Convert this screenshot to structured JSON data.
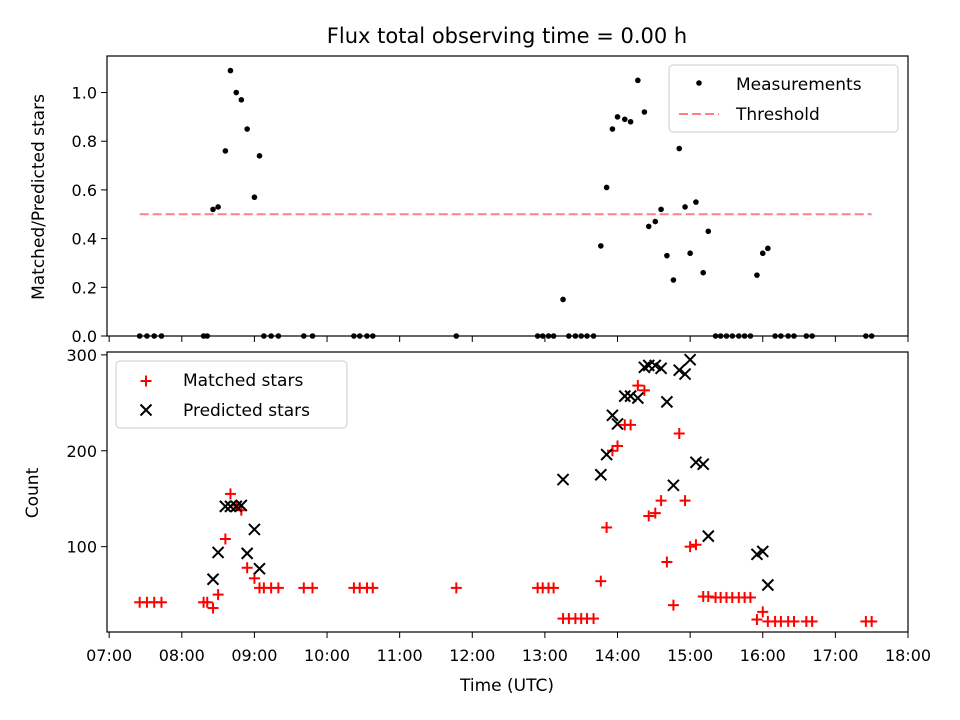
{
  "chart_data": [
    {
      "type": "scatter",
      "title": "Flux total observing time = 0.00 h",
      "xlabel": "",
      "ylabel": "Matched/Predicted stars",
      "xlim": [
        6.97,
        18.0
      ],
      "ylim": [
        0,
        1.15
      ],
      "yticks": [
        0.0,
        0.2,
        0.4,
        0.6,
        0.8,
        1.0
      ],
      "ytick_labels": [
        "0.0",
        "0.2",
        "0.4",
        "0.6",
        "0.8",
        "1.0"
      ],
      "legend_position": "upper right",
      "threshold": {
        "name": "Threshold",
        "value": 0.5,
        "x_range": [
          7.42,
          17.5
        ],
        "color": "#ff8080"
      },
      "series": [
        {
          "name": "Measurements",
          "color": "#000000",
          "points": [
            [
              7.42,
              0
            ],
            [
              7.52,
              0
            ],
            [
              7.62,
              0
            ],
            [
              7.72,
              0
            ],
            [
              8.3,
              0
            ],
            [
              8.35,
              0
            ],
            [
              8.43,
              0.52
            ],
            [
              8.5,
              0.53
            ],
            [
              8.6,
              0.76
            ],
            [
              8.67,
              1.09
            ],
            [
              8.75,
              1.0
            ],
            [
              8.82,
              0.97
            ],
            [
              8.9,
              0.85
            ],
            [
              9.0,
              0.57
            ],
            [
              9.07,
              0.74
            ],
            [
              9.13,
              0
            ],
            [
              9.23,
              0
            ],
            [
              9.33,
              0
            ],
            [
              9.68,
              0
            ],
            [
              9.8,
              0
            ],
            [
              10.37,
              0
            ],
            [
              10.45,
              0
            ],
            [
              10.55,
              0
            ],
            [
              10.63,
              0
            ],
            [
              11.78,
              0
            ],
            [
              12.9,
              0
            ],
            [
              12.97,
              0
            ],
            [
              13.05,
              0
            ],
            [
              13.12,
              0
            ],
            [
              13.25,
              0.15
            ],
            [
              13.33,
              0
            ],
            [
              13.42,
              0
            ],
            [
              13.5,
              0
            ],
            [
              13.58,
              0
            ],
            [
              13.67,
              0
            ],
            [
              13.77,
              0.37
            ],
            [
              13.85,
              0.61
            ],
            [
              13.93,
              0.85
            ],
            [
              14.0,
              0.9
            ],
            [
              14.1,
              0.89
            ],
            [
              14.18,
              0.88
            ],
            [
              14.28,
              1.05
            ],
            [
              14.37,
              0.92
            ],
            [
              14.43,
              0.45
            ],
            [
              14.52,
              0.47
            ],
            [
              14.6,
              0.52
            ],
            [
              14.68,
              0.33
            ],
            [
              14.77,
              0.23
            ],
            [
              14.85,
              0.77
            ],
            [
              14.93,
              0.53
            ],
            [
              15.0,
              0.34
            ],
            [
              15.08,
              0.55
            ],
            [
              15.18,
              0.26
            ],
            [
              15.25,
              0.43
            ],
            [
              15.35,
              0
            ],
            [
              15.42,
              0
            ],
            [
              15.5,
              0
            ],
            [
              15.58,
              0
            ],
            [
              15.67,
              0
            ],
            [
              15.75,
              0
            ],
            [
              15.83,
              0
            ],
            [
              15.92,
              0.25
            ],
            [
              16.0,
              0.34
            ],
            [
              16.07,
              0.36
            ],
            [
              16.17,
              0
            ],
            [
              16.25,
              0
            ],
            [
              16.35,
              0
            ],
            [
              16.43,
              0
            ],
            [
              16.6,
              0
            ],
            [
              16.68,
              0
            ],
            [
              17.42,
              0
            ],
            [
              17.5,
              0
            ]
          ]
        }
      ]
    },
    {
      "type": "scatter",
      "title": "",
      "xlabel": "Time (UTC)",
      "ylabel": "Count",
      "xlim": [
        6.97,
        18.0
      ],
      "ylim": [
        11,
        303
      ],
      "yticks": [
        100,
        200,
        300
      ],
      "ytick_labels": [
        "100",
        "200",
        "300"
      ],
      "xticks": [
        7,
        8,
        9,
        10,
        11,
        12,
        13,
        14,
        15,
        16,
        17,
        18
      ],
      "xtick_labels": [
        "07:00",
        "08:00",
        "09:00",
        "10:00",
        "11:00",
        "12:00",
        "13:00",
        "14:00",
        "15:00",
        "16:00",
        "17:00",
        "18:00"
      ],
      "legend_position": "upper left",
      "series": [
        {
          "name": "Matched stars",
          "marker": "+",
          "color": "#ff0000",
          "points": [
            [
              7.42,
              42
            ],
            [
              7.52,
              42
            ],
            [
              7.62,
              42
            ],
            [
              7.72,
              42
            ],
            [
              8.3,
              42
            ],
            [
              8.35,
              42
            ],
            [
              8.43,
              36
            ],
            [
              8.5,
              50
            ],
            [
              8.6,
              108
            ],
            [
              8.67,
              155
            ],
            [
              8.75,
              143
            ],
            [
              8.82,
              138
            ],
            [
              8.9,
              78
            ],
            [
              9.0,
              67
            ],
            [
              9.07,
              57
            ],
            [
              9.13,
              57
            ],
            [
              9.23,
              57
            ],
            [
              9.33,
              57
            ],
            [
              9.68,
              57
            ],
            [
              9.8,
              57
            ],
            [
              10.37,
              57
            ],
            [
              10.45,
              57
            ],
            [
              10.55,
              57
            ],
            [
              10.63,
              57
            ],
            [
              11.78,
              57
            ],
            [
              12.9,
              57
            ],
            [
              12.97,
              57
            ],
            [
              13.05,
              57
            ],
            [
              13.12,
              57
            ],
            [
              13.25,
              25
            ],
            [
              13.33,
              25
            ],
            [
              13.42,
              25
            ],
            [
              13.5,
              25
            ],
            [
              13.58,
              25
            ],
            [
              13.67,
              25
            ],
            [
              13.77,
              64
            ],
            [
              13.85,
              120
            ],
            [
              13.93,
              200
            ],
            [
              14.0,
              205
            ],
            [
              14.1,
              227
            ],
            [
              14.18,
              227
            ],
            [
              14.28,
              268
            ],
            [
              14.37,
              263
            ],
            [
              14.43,
              132
            ],
            [
              14.52,
              135
            ],
            [
              14.6,
              148
            ],
            [
              14.68,
              84
            ],
            [
              14.77,
              39
            ],
            [
              14.85,
              218
            ],
            [
              14.93,
              148
            ],
            [
              15.0,
              100
            ],
            [
              15.08,
              102
            ],
            [
              15.18,
              48
            ],
            [
              15.25,
              48
            ],
            [
              15.35,
              47
            ],
            [
              15.42,
              47
            ],
            [
              15.5,
              47
            ],
            [
              15.58,
              47
            ],
            [
              15.67,
              47
            ],
            [
              15.75,
              47
            ],
            [
              15.83,
              47
            ],
            [
              15.92,
              24
            ],
            [
              16.0,
              32
            ],
            [
              16.07,
              22
            ],
            [
              16.17,
              22
            ],
            [
              16.25,
              22
            ],
            [
              16.35,
              22
            ],
            [
              16.43,
              22
            ],
            [
              16.6,
              22
            ],
            [
              16.68,
              22
            ],
            [
              17.42,
              22
            ],
            [
              17.5,
              22
            ]
          ]
        },
        {
          "name": "Predicted stars",
          "marker": "x",
          "color": "#000000",
          "points": [
            [
              8.43,
              66
            ],
            [
              8.5,
              94
            ],
            [
              8.6,
              142
            ],
            [
              8.67,
              142
            ],
            [
              8.75,
              142
            ],
            [
              8.82,
              143
            ],
            [
              8.9,
              93
            ],
            [
              9.0,
              118
            ],
            [
              9.07,
              77
            ],
            [
              13.25,
              170
            ],
            [
              13.77,
              175
            ],
            [
              13.85,
              196
            ],
            [
              13.93,
              237
            ],
            [
              14.0,
              228
            ],
            [
              14.1,
              257
            ],
            [
              14.18,
              257
            ],
            [
              14.28,
              255
            ],
            [
              14.37,
              287
            ],
            [
              14.43,
              289
            ],
            [
              14.52,
              289
            ],
            [
              14.6,
              286
            ],
            [
              14.68,
              251
            ],
            [
              14.77,
              164
            ],
            [
              14.85,
              284
            ],
            [
              14.93,
              280
            ],
            [
              15.0,
              295
            ],
            [
              15.08,
              188
            ],
            [
              15.18,
              186
            ],
            [
              15.25,
              111
            ],
            [
              15.92,
              92
            ],
            [
              16.0,
              95
            ],
            [
              16.07,
              60
            ]
          ]
        }
      ]
    }
  ]
}
